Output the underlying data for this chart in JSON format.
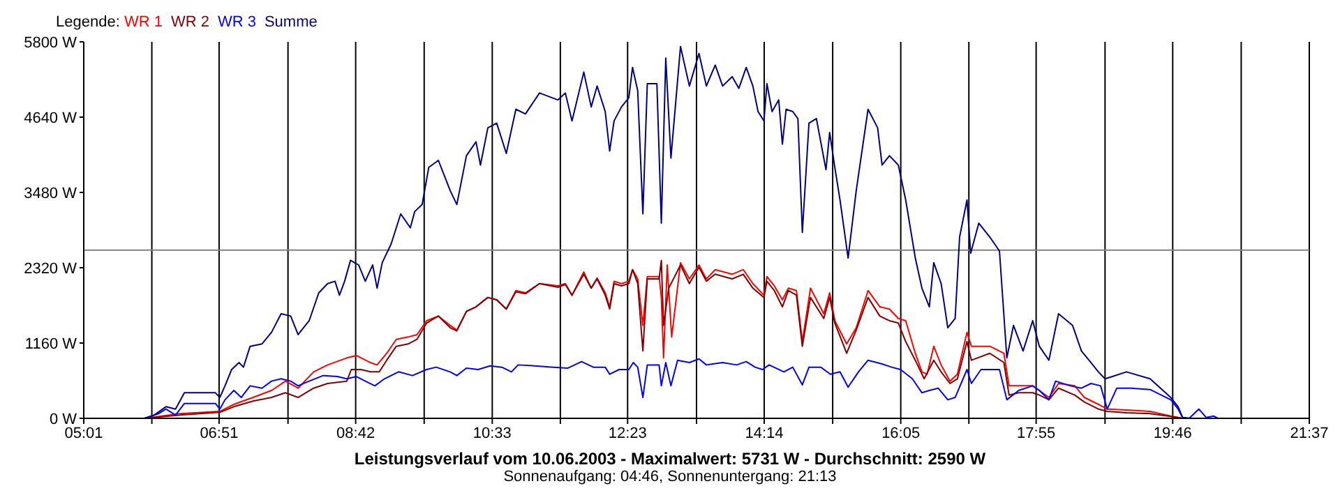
{
  "chart_data": {
    "type": "line",
    "legend_title": "Legende:",
    "legend": "top left",
    "grid": true,
    "marker": "none",
    "line_style": "solid",
    "xlabel": "Leistungsverlauf vom 10.06.2003 - Maximalwert: 5731 W - Durchschnitt: 2590 W",
    "annotations": [
      "Sonnenaufgang: 04:46, Sonnenuntergang: 21:13"
    ],
    "xlim": [
      5.0167,
      21.6167
    ],
    "xticks": [
      {
        "value": 5.0167,
        "label": "05:01"
      },
      {
        "value": 5.9389,
        "label": null
      },
      {
        "value": 6.85,
        "label": "06:51"
      },
      {
        "value": 7.7833,
        "label": null
      },
      {
        "value": 8.7,
        "label": "08:42"
      },
      {
        "value": 9.6278,
        "label": null
      },
      {
        "value": 10.55,
        "label": "10:33"
      },
      {
        "value": 11.4722,
        "label": null
      },
      {
        "value": 12.3833,
        "label": "12:23"
      },
      {
        "value": 13.3167,
        "label": null
      },
      {
        "value": 14.2333,
        "label": "14:14"
      },
      {
        "value": 15.1611,
        "label": null
      },
      {
        "value": 16.0833,
        "label": "16:05"
      },
      {
        "value": 17.0056,
        "label": null
      },
      {
        "value": 17.9167,
        "label": "17:55"
      },
      {
        "value": 18.85,
        "label": null
      },
      {
        "value": 19.7667,
        "label": "19:46"
      },
      {
        "value": 20.6944,
        "label": null
      },
      {
        "value": 21.6167,
        "label": "21:37"
      }
    ],
    "ylim": [
      0,
      5800
    ],
    "yticks": [
      {
        "value": 0,
        "label": "0 W"
      },
      {
        "value": 1160,
        "label": "1160 W"
      },
      {
        "value": 2320,
        "label": "2320 W"
      },
      {
        "value": 3480,
        "label": "3480 W"
      },
      {
        "value": 4640,
        "label": "4640 W"
      },
      {
        "value": 5800,
        "label": "5800 W"
      }
    ],
    "ref_lines": [
      {
        "axis": "y",
        "value": 2590,
        "color": "#808080"
      }
    ],
    "series": [
      {
        "name": "WR 1",
        "color": "#ff0000",
        "x": [
          5.84,
          6.32,
          6.86,
          7.05,
          7.31,
          7.56,
          7.75,
          7.92,
          8.13,
          8.32,
          8.58,
          8.71,
          8.9,
          8.99,
          9.12,
          9.25,
          9.41,
          9.53,
          9.66,
          9.82,
          9.98,
          10.07,
          10.2,
          10.33,
          10.49,
          10.61,
          10.74,
          10.87,
          11.0,
          11.19,
          11.44,
          11.54,
          11.63,
          11.79,
          11.89,
          11.97,
          12.08,
          12.14,
          12.2,
          12.3,
          12.4,
          12.45,
          12.52,
          12.59,
          12.65,
          12.81,
          12.84,
          12.87,
          12.92,
          12.98,
          13.1,
          13.22,
          13.35,
          13.45,
          13.57,
          13.8,
          13.95,
          14.08,
          14.23,
          14.27,
          14.37,
          14.48,
          14.56,
          14.67,
          14.75,
          14.86,
          15.04,
          15.12,
          15.19,
          15.35,
          15.48,
          15.64,
          15.8,
          15.93,
          16.05,
          16.15,
          16.28,
          16.37,
          16.44,
          16.53,
          16.63,
          16.75,
          16.85,
          16.98,
          17.04,
          17.29,
          17.48,
          17.55,
          17.68,
          17.87,
          17.96,
          18.09,
          18.22,
          18.44,
          18.57,
          18.76,
          18.88,
          19.14,
          19.46,
          19.74,
          19.9
        ],
        "values": [
          0,
          72,
          107,
          215,
          322,
          430,
          573,
          465,
          716,
          823,
          931,
          967,
          859,
          823,
          1002,
          1217,
          1253,
          1289,
          1504,
          1575,
          1432,
          1360,
          1647,
          1718,
          1862,
          1826,
          1683,
          1969,
          1933,
          2076,
          2041,
          2076,
          1897,
          2255,
          2005,
          2162,
          1933,
          1718,
          2112,
          2076,
          2112,
          2291,
          2148,
          1432,
          2184,
          2184,
          1862,
          931,
          2363,
          1253,
          2399,
          2148,
          2363,
          2148,
          2291,
          2220,
          2291,
          2076,
          1897,
          2184,
          2041,
          1826,
          2005,
          1969,
          1181,
          2005,
          1611,
          1933,
          1504,
          1146,
          1396,
          1969,
          1718,
          1683,
          1539,
          1504,
          1002,
          716,
          680,
          1110,
          823,
          573,
          680,
          1325,
          1110,
          1110,
          1002,
          501,
          501,
          501,
          430,
          322,
          537,
          501,
          322,
          215,
          143,
          129,
          107,
          36,
          0
        ]
      },
      {
        "name": "WR 2",
        "color": "#800000",
        "x": [
          5.84,
          6.32,
          6.86,
          7.05,
          7.31,
          7.56,
          7.75,
          7.92,
          8.13,
          8.32,
          8.58,
          8.64,
          8.77,
          8.9,
          9.02,
          9.12,
          9.25,
          9.41,
          9.53,
          9.66,
          9.82,
          9.98,
          10.07,
          10.2,
          10.33,
          10.49,
          10.61,
          10.74,
          10.87,
          11.0,
          11.19,
          11.44,
          11.54,
          11.63,
          11.79,
          11.89,
          11.97,
          12.08,
          12.14,
          12.2,
          12.3,
          12.4,
          12.45,
          12.52,
          12.59,
          12.65,
          12.81,
          12.84,
          12.87,
          12.94,
          13.1,
          13.22,
          13.35,
          13.45,
          13.57,
          13.8,
          13.95,
          14.08,
          14.23,
          14.27,
          14.37,
          14.48,
          14.56,
          14.67,
          14.75,
          14.86,
          15.04,
          15.12,
          15.19,
          15.35,
          15.48,
          15.64,
          15.8,
          15.93,
          16.05,
          16.15,
          16.28,
          16.4,
          16.53,
          16.63,
          16.75,
          16.85,
          16.98,
          17.04,
          17.29,
          17.48,
          17.55,
          17.68,
          17.87,
          17.96,
          18.09,
          18.22,
          18.44,
          18.57,
          18.76,
          18.88,
          19.14,
          19.46,
          19.74,
          19.9
        ],
        "values": [
          0,
          50,
          93,
          179,
          265,
          322,
          394,
          322,
          465,
          537,
          573,
          752,
          752,
          716,
          716,
          895,
          1110,
          1146,
          1217,
          1468,
          1575,
          1396,
          1346,
          1647,
          1718,
          1862,
          1826,
          1683,
          1948,
          1919,
          2076,
          2019,
          2062,
          1897,
          2220,
          2005,
          2148,
          1897,
          1683,
          2076,
          2041,
          2076,
          2291,
          2076,
          1038,
          2148,
          2148,
          2434,
          1432,
          2005,
          2363,
          2076,
          2327,
          2112,
          2220,
          2148,
          2220,
          2005,
          1862,
          2112,
          1969,
          1718,
          1969,
          1897,
          1110,
          1862,
          1539,
          1862,
          1468,
          1002,
          1360,
          1862,
          1575,
          1504,
          1468,
          1181,
          895,
          609,
          895,
          716,
          537,
          609,
          1181,
          895,
          1002,
          859,
          358,
          394,
          394,
          358,
          286,
          465,
          358,
          251,
          143,
          107,
          86,
          72,
          29,
          0
        ]
      },
      {
        "name": "WR 3",
        "color": "#0000ff",
        "x": [
          5.84,
          6.03,
          6.13,
          6.26,
          6.38,
          6.54,
          6.8,
          6.86,
          6.93,
          7.05,
          7.15,
          7.27,
          7.43,
          7.56,
          7.69,
          7.82,
          7.92,
          8.07,
          8.26,
          8.45,
          8.58,
          8.71,
          8.83,
          8.96,
          9.09,
          9.28,
          9.47,
          9.66,
          9.79,
          9.98,
          10.07,
          10.2,
          10.36,
          10.52,
          10.68,
          10.81,
          10.9,
          11.12,
          11.38,
          11.57,
          11.76,
          11.92,
          12.08,
          12.14,
          12.27,
          12.4,
          12.46,
          12.52,
          12.59,
          12.65,
          12.81,
          12.84,
          12.9,
          12.97,
          13.06,
          13.22,
          13.35,
          13.45,
          13.67,
          13.86,
          13.99,
          14.11,
          14.21,
          14.3,
          14.5,
          14.62,
          14.75,
          14.84,
          15.0,
          15.13,
          15.26,
          15.37,
          15.51,
          15.64,
          15.83,
          15.96,
          16.08,
          16.24,
          16.37,
          16.47,
          16.59,
          16.72,
          16.82,
          16.98,
          17.04,
          17.17,
          17.42,
          17.52,
          17.68,
          17.87,
          17.96,
          18.09,
          18.18,
          18.38,
          18.53,
          18.66,
          18.79,
          18.88,
          19.01,
          19.2,
          19.46,
          19.74,
          19.84,
          19.9,
          19.99,
          20.12,
          20.22,
          20.32,
          20.38
        ],
        "values": [
          0,
          72,
          143,
          50,
          229,
          229,
          229,
          143,
          286,
          430,
          322,
          501,
          465,
          573,
          609,
          573,
          501,
          573,
          659,
          644,
          609,
          644,
          573,
          501,
          609,
          716,
          659,
          752,
          788,
          716,
          659,
          773,
          752,
          809,
          788,
          716,
          823,
          809,
          788,
          773,
          874,
          788,
          788,
          680,
          752,
          752,
          859,
          788,
          322,
          823,
          823,
          501,
          859,
          501,
          895,
          859,
          916,
          823,
          859,
          823,
          874,
          788,
          752,
          823,
          716,
          788,
          516,
          788,
          788,
          680,
          716,
          480,
          716,
          895,
          838,
          788,
          752,
          609,
          394,
          430,
          465,
          286,
          322,
          752,
          537,
          752,
          752,
          286,
          430,
          501,
          430,
          286,
          573,
          501,
          465,
          537,
          501,
          143,
          465,
          465,
          444,
          286,
          143,
          14,
          0,
          143,
          14,
          36,
          0
        ]
      },
      {
        "name": "Summe",
        "color": "#000080",
        "x": [
          5.84,
          5.97,
          6.13,
          6.26,
          6.38,
          6.54,
          6.8,
          6.86,
          6.93,
          7.02,
          7.12,
          7.18,
          7.27,
          7.43,
          7.56,
          7.69,
          7.82,
          7.92,
          8.07,
          8.2,
          8.32,
          8.42,
          8.48,
          8.55,
          8.63,
          8.74,
          8.83,
          8.93,
          8.99,
          9.06,
          9.18,
          9.31,
          9.44,
          9.5,
          9.6,
          9.69,
          9.82,
          9.98,
          10.07,
          10.2,
          10.33,
          10.39,
          10.49,
          10.61,
          10.74,
          10.87,
          11.0,
          11.19,
          11.44,
          11.54,
          11.63,
          11.79,
          11.89,
          11.97,
          12.08,
          12.14,
          12.2,
          12.3,
          12.4,
          12.45,
          12.52,
          12.59,
          12.65,
          12.78,
          12.84,
          12.9,
          12.97,
          13.1,
          13.22,
          13.35,
          13.45,
          13.57,
          13.67,
          13.8,
          13.89,
          13.99,
          14.08,
          14.15,
          14.23,
          14.27,
          14.34,
          14.43,
          14.48,
          14.53,
          14.62,
          14.69,
          14.75,
          14.84,
          14.94,
          15.07,
          15.12,
          15.19,
          15.26,
          15.37,
          15.48,
          15.64,
          15.77,
          15.83,
          15.93,
          16.05,
          16.15,
          16.28,
          16.37,
          16.47,
          16.53,
          16.63,
          16.72,
          16.82,
          16.88,
          16.98,
          17.03,
          17.14,
          17.29,
          17.42,
          17.52,
          17.61,
          17.74,
          17.87,
          17.96,
          18.09,
          18.22,
          18.41,
          18.53,
          18.66,
          18.76,
          18.85,
          18.95,
          19.14,
          19.46,
          19.74,
          19.84,
          19.9,
          19.99
        ],
        "values": [
          0,
          50,
          179,
          143,
          394,
          394,
          394,
          322,
          501,
          752,
          859,
          788,
          1110,
          1146,
          1325,
          1611,
          1575,
          1289,
          1504,
          1933,
          2076,
          2112,
          1897,
          2112,
          2434,
          2363,
          2112,
          2363,
          2005,
          2399,
          2685,
          3150,
          2936,
          3186,
          3294,
          3866,
          3974,
          3508,
          3294,
          4045,
          4260,
          3902,
          4475,
          4547,
          4081,
          4761,
          4690,
          5012,
          4905,
          5012,
          4582,
          5334,
          4797,
          5119,
          4726,
          4117,
          4582,
          4797,
          4940,
          5406,
          5048,
          3150,
          5155,
          5155,
          3007,
          5549,
          4010,
          5728,
          5119,
          5621,
          5119,
          5442,
          5119,
          5263,
          5084,
          5406,
          5119,
          4726,
          4582,
          5155,
          4726,
          4905,
          4224,
          4761,
          4726,
          4618,
          2864,
          4547,
          4618,
          3831,
          4403,
          3866,
          3365,
          2470,
          3508,
          4761,
          4475,
          3902,
          4045,
          3902,
          3365,
          2470,
          2005,
          1718,
          2399,
          2076,
          1396,
          1539,
          2792,
          3365,
          2542,
          3007,
          2792,
          2578,
          931,
          1432,
          1038,
          1504,
          1110,
          895,
          1611,
          1432,
          1038,
          859,
          716,
          609,
          644,
          716,
          609,
          322,
          179,
          14,
          0
        ]
      }
    ]
  }
}
